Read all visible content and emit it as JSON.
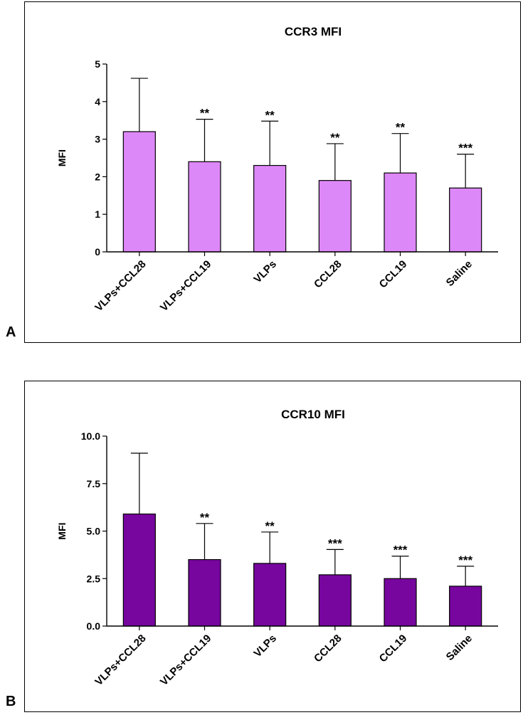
{
  "panels": [
    {
      "letter": "A"
    },
    {
      "letter": "B"
    }
  ],
  "chart_data": [
    {
      "type": "bar",
      "title": "CCR3 MFI",
      "ylabel": "MFI",
      "xlabel": "",
      "categories": [
        "VLPs+CCL28",
        "VLPs+CCL19",
        "VLPs",
        "CCL28",
        "CCL19",
        "Saline"
      ],
      "values": [
        3.2,
        2.4,
        2.3,
        1.9,
        2.1,
        1.7
      ],
      "error_upper": [
        4.62,
        3.53,
        3.48,
        2.88,
        3.15,
        2.6
      ],
      "significance": [
        "",
        "**",
        "**",
        "**",
        "**",
        "***"
      ],
      "ylim": [
        0,
        5
      ],
      "yticks": [
        "0",
        "1",
        "2",
        "3",
        "4",
        "5"
      ],
      "bar_color": "#dd88f8",
      "grid": false
    },
    {
      "type": "bar",
      "title": "CCR10 MFI",
      "ylabel": "MFI",
      "xlabel": "",
      "categories": [
        "VLPs+CCL28",
        "VLPs+CCL19",
        "VLPs",
        "CCL28",
        "CCL19",
        "Saline"
      ],
      "values": [
        5.9,
        3.5,
        3.3,
        2.7,
        2.5,
        2.1
      ],
      "error_upper": [
        9.1,
        5.4,
        4.95,
        4.03,
        3.68,
        3.15
      ],
      "significance": [
        "",
        "**",
        "**",
        "***",
        "***",
        "***"
      ],
      "ylim": [
        0,
        10
      ],
      "yticks": [
        "0.0",
        "2.5",
        "5.0",
        "7.5",
        "10.0"
      ],
      "bar_color": "#77069f",
      "grid": false
    }
  ]
}
